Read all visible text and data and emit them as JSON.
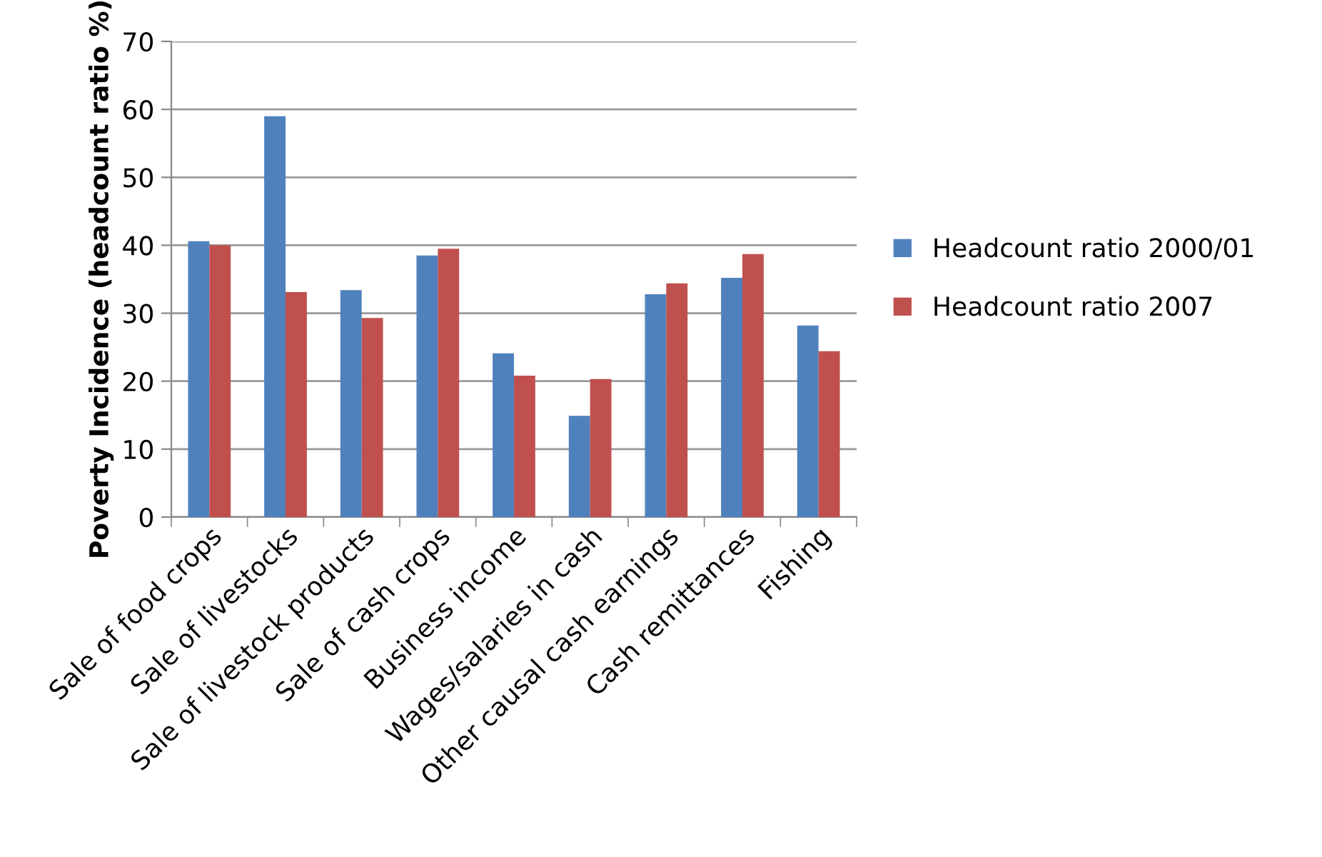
{
  "chart_data": {
    "type": "bar",
    "ylabel": "Poverty Incidence (headcount ratio %)",
    "categories": [
      "Sale of food crops",
      "Sale of livestocks",
      "Sale of livestock products",
      "Sale of cash crops",
      "Business income",
      "Wages/salaries in cash",
      "Other causal cash earnings",
      "Cash remittances",
      "Fishing"
    ],
    "series": [
      {
        "name": "Headcount ratio 2000/01",
        "color": "#4f81bd",
        "values": [
          40.6,
          59.0,
          33.4,
          38.5,
          24.1,
          14.9,
          32.8,
          35.2,
          28.2
        ]
      },
      {
        "name": "Headcount ratio 2007",
        "color": "#c0504d",
        "values": [
          40.0,
          33.1,
          29.3,
          39.5,
          20.8,
          20.3,
          34.4,
          38.7,
          24.4
        ]
      }
    ],
    "ylim": [
      0,
      70
    ],
    "yticks": [
      0,
      10,
      20,
      30,
      40,
      50,
      60,
      70
    ],
    "grid": "y",
    "legend": "right"
  }
}
